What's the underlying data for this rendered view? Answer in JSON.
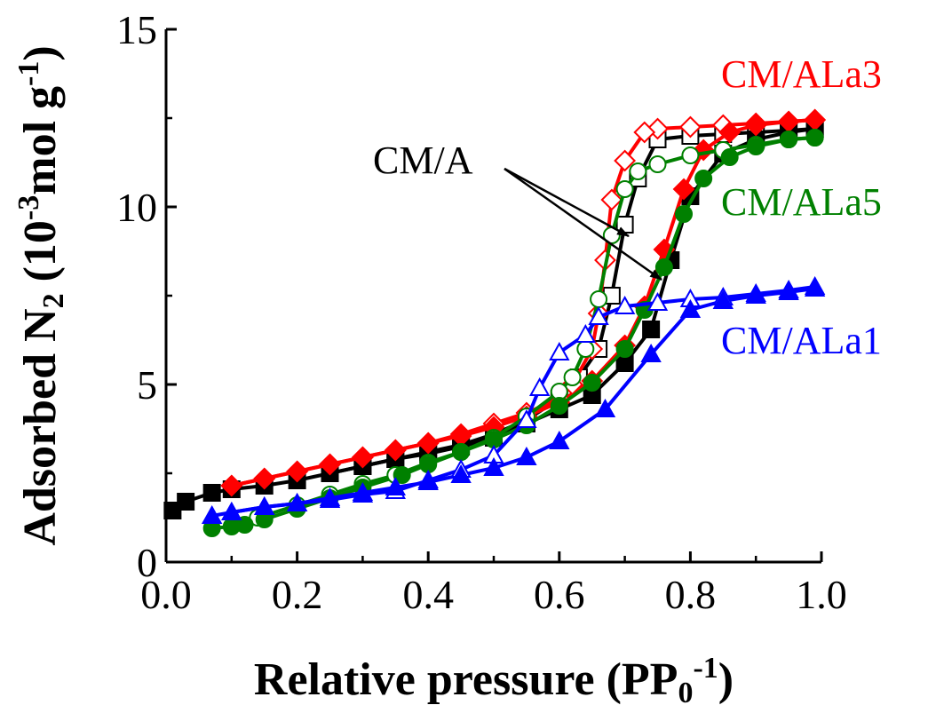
{
  "chart_data": {
    "type": "line",
    "title": "",
    "xlabel": {
      "main": "Relative pressure (PP",
      "sub": "0",
      "sup": "-1",
      "close": ")"
    },
    "ylabel": {
      "main": "Adsorbed N",
      "sub": "2",
      "mid": " (10",
      "sup": "-3",
      "tail": "mol g",
      "sup2": "-1",
      "close": ")"
    },
    "xlim": [
      0.0,
      1.0
    ],
    "ylim": [
      0,
      15
    ],
    "xticks": [
      "0.0",
      "0.2",
      "0.4",
      "0.6",
      "0.8",
      "1.0"
    ],
    "yticks": [
      "0",
      "5",
      "10",
      "15"
    ],
    "grid": false,
    "legend": "inline labels at right",
    "series": [
      {
        "name": "CM/A",
        "color": "#000000",
        "marker": "square",
        "adsorption": [
          [
            0.01,
            1.45
          ],
          [
            0.03,
            1.7
          ],
          [
            0.07,
            1.95
          ],
          [
            0.1,
            2.05
          ],
          [
            0.15,
            2.15
          ],
          [
            0.2,
            2.3
          ],
          [
            0.25,
            2.5
          ],
          [
            0.3,
            2.7
          ],
          [
            0.35,
            2.9
          ],
          [
            0.4,
            3.05
          ],
          [
            0.45,
            3.25
          ],
          [
            0.5,
            3.5
          ],
          [
            0.55,
            3.9
          ],
          [
            0.6,
            4.3
          ],
          [
            0.65,
            4.7
          ],
          [
            0.7,
            5.6
          ],
          [
            0.74,
            6.55
          ],
          [
            0.77,
            8.5
          ],
          [
            0.8,
            10.3
          ],
          [
            0.85,
            11.5
          ],
          [
            0.9,
            11.9
          ],
          [
            0.95,
            12.1
          ],
          [
            0.99,
            12.2
          ]
        ],
        "desorption": [
          [
            0.99,
            12.2
          ],
          [
            0.95,
            12.15
          ],
          [
            0.9,
            12.1
          ],
          [
            0.85,
            12.05
          ],
          [
            0.8,
            12.0
          ],
          [
            0.75,
            11.9
          ],
          [
            0.72,
            10.8
          ],
          [
            0.7,
            9.5
          ],
          [
            0.68,
            7.5
          ],
          [
            0.66,
            6.0
          ],
          [
            0.63,
            5.2
          ],
          [
            0.6,
            4.6
          ],
          [
            0.55,
            4.0
          ],
          [
            0.5,
            3.6
          ],
          [
            0.45,
            3.3
          ],
          [
            0.4,
            3.1
          ],
          [
            0.35,
            2.9
          ],
          [
            0.3,
            2.7
          ],
          [
            0.25,
            2.5
          ]
        ]
      },
      {
        "name": "CM/ALa3",
        "color": "#ff0000",
        "marker": "diamond",
        "adsorption": [
          [
            0.1,
            2.15
          ],
          [
            0.15,
            2.35
          ],
          [
            0.2,
            2.55
          ],
          [
            0.25,
            2.75
          ],
          [
            0.3,
            2.95
          ],
          [
            0.35,
            3.15
          ],
          [
            0.4,
            3.35
          ],
          [
            0.45,
            3.55
          ],
          [
            0.5,
            3.8
          ],
          [
            0.55,
            4.1
          ],
          [
            0.6,
            4.5
          ],
          [
            0.65,
            5.1
          ],
          [
            0.7,
            6.1
          ],
          [
            0.73,
            7.2
          ],
          [
            0.76,
            8.8
          ],
          [
            0.79,
            10.5
          ],
          [
            0.82,
            11.6
          ],
          [
            0.86,
            12.1
          ],
          [
            0.9,
            12.3
          ],
          [
            0.95,
            12.4
          ],
          [
            0.99,
            12.45
          ]
        ],
        "desorption": [
          [
            0.99,
            12.45
          ],
          [
            0.95,
            12.4
          ],
          [
            0.9,
            12.35
          ],
          [
            0.85,
            12.3
          ],
          [
            0.8,
            12.25
          ],
          [
            0.75,
            12.2
          ],
          [
            0.73,
            12.1
          ],
          [
            0.7,
            11.3
          ],
          [
            0.68,
            10.2
          ],
          [
            0.67,
            8.5
          ],
          [
            0.66,
            7.0
          ],
          [
            0.65,
            6.0
          ],
          [
            0.62,
            5.0
          ],
          [
            0.6,
            4.6
          ],
          [
            0.55,
            4.2
          ],
          [
            0.5,
            3.9
          ],
          [
            0.45,
            3.6
          ],
          [
            0.4,
            3.35
          ],
          [
            0.35,
            3.15
          ],
          [
            0.3,
            2.95
          ],
          [
            0.25,
            2.75
          ],
          [
            0.2,
            2.55
          ],
          [
            0.15,
            2.35
          ],
          [
            0.1,
            2.15
          ]
        ]
      },
      {
        "name": "CM/ALa5",
        "color": "#008000",
        "marker": "circle",
        "adsorption": [
          [
            0.07,
            0.95
          ],
          [
            0.1,
            1.0
          ],
          [
            0.12,
            1.05
          ],
          [
            0.15,
            1.2
          ],
          [
            0.2,
            1.5
          ],
          [
            0.25,
            1.8
          ],
          [
            0.3,
            2.1
          ],
          [
            0.36,
            2.45
          ],
          [
            0.4,
            2.75
          ],
          [
            0.45,
            3.1
          ],
          [
            0.5,
            3.45
          ],
          [
            0.55,
            3.85
          ],
          [
            0.6,
            4.4
          ],
          [
            0.65,
            5.05
          ],
          [
            0.7,
            6.0
          ],
          [
            0.73,
            7.1
          ],
          [
            0.76,
            8.3
          ],
          [
            0.79,
            9.8
          ],
          [
            0.82,
            10.8
          ],
          [
            0.86,
            11.4
          ],
          [
            0.9,
            11.7
          ],
          [
            0.95,
            11.9
          ],
          [
            0.99,
            11.95
          ]
        ],
        "desorption": [
          [
            0.99,
            11.95
          ],
          [
            0.95,
            11.9
          ],
          [
            0.9,
            11.75
          ],
          [
            0.85,
            11.6
          ],
          [
            0.8,
            11.45
          ],
          [
            0.75,
            11.2
          ],
          [
            0.72,
            11.0
          ],
          [
            0.7,
            10.5
          ],
          [
            0.68,
            9.2
          ],
          [
            0.66,
            7.4
          ],
          [
            0.64,
            6.0
          ],
          [
            0.62,
            5.2
          ],
          [
            0.6,
            4.8
          ],
          [
            0.55,
            4.1
          ],
          [
            0.5,
            3.5
          ],
          [
            0.45,
            3.1
          ],
          [
            0.4,
            2.8
          ],
          [
            0.35,
            2.45
          ],
          [
            0.3,
            2.2
          ],
          [
            0.25,
            1.9
          ],
          [
            0.2,
            1.6
          ],
          [
            0.14,
            1.25
          ]
        ]
      },
      {
        "name": "CM/ALa1",
        "color": "#0000ff",
        "marker": "triangle",
        "adsorption": [
          [
            0.07,
            1.3
          ],
          [
            0.1,
            1.4
          ],
          [
            0.15,
            1.55
          ],
          [
            0.2,
            1.65
          ],
          [
            0.25,
            1.8
          ],
          [
            0.3,
            1.95
          ],
          [
            0.35,
            2.1
          ],
          [
            0.4,
            2.25
          ],
          [
            0.45,
            2.45
          ],
          [
            0.5,
            2.65
          ],
          [
            0.55,
            2.95
          ],
          [
            0.6,
            3.4
          ],
          [
            0.67,
            4.3
          ],
          [
            0.74,
            5.85
          ],
          [
            0.8,
            7.1
          ],
          [
            0.85,
            7.35
          ],
          [
            0.9,
            7.5
          ],
          [
            0.95,
            7.6
          ],
          [
            0.99,
            7.7
          ]
        ],
        "desorption": [
          [
            0.99,
            7.75
          ],
          [
            0.95,
            7.65
          ],
          [
            0.9,
            7.55
          ],
          [
            0.85,
            7.45
          ],
          [
            0.8,
            7.4
          ],
          [
            0.75,
            7.3
          ],
          [
            0.7,
            7.2
          ],
          [
            0.66,
            6.9
          ],
          [
            0.64,
            6.4
          ],
          [
            0.6,
            5.9
          ],
          [
            0.57,
            4.9
          ],
          [
            0.55,
            4.0
          ],
          [
            0.5,
            3.0
          ],
          [
            0.45,
            2.6
          ],
          [
            0.4,
            2.3
          ],
          [
            0.35,
            2.0
          ],
          [
            0.3,
            1.9
          ],
          [
            0.25,
            1.75
          ],
          [
            0.2,
            1.65
          ],
          [
            0.15,
            1.55
          ],
          [
            0.1,
            1.4
          ]
        ]
      }
    ],
    "annotations": [
      {
        "text": "CM/A",
        "color": "#000000"
      },
      {
        "text": "CM/ALa3",
        "color": "#ff0000"
      },
      {
        "text": "CM/ALa5",
        "color": "#008000"
      },
      {
        "text": "CM/ALa1",
        "color": "#0000ff"
      }
    ]
  }
}
